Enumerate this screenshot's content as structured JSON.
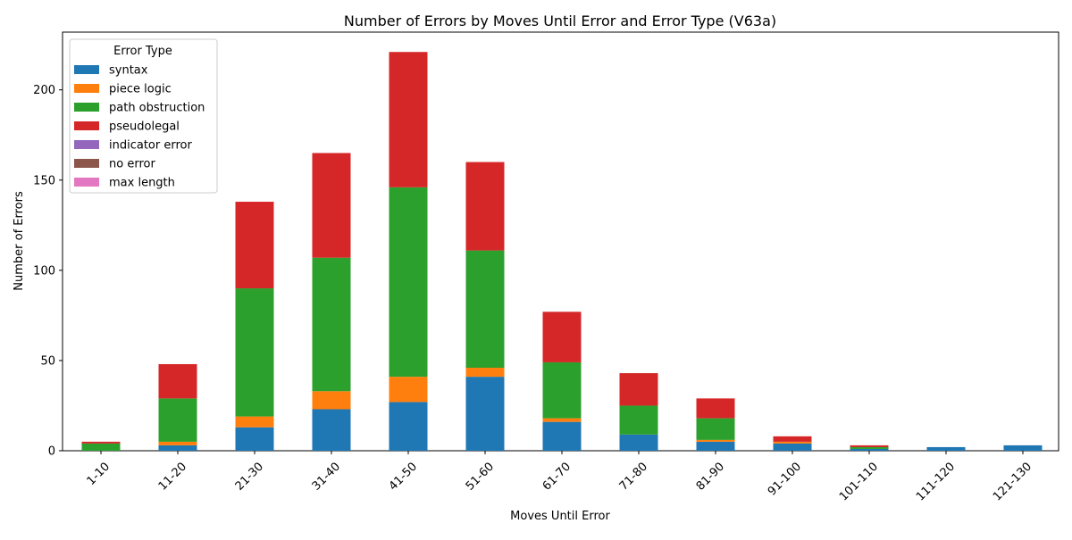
{
  "chart_data": {
    "type": "bar",
    "stacked": true,
    "title": "Number of Errors by Moves Until Error and Error Type (V63a)",
    "xlabel": "Moves Until Error",
    "ylabel": "Number of Errors",
    "ylim": [
      0,
      232
    ],
    "yticks": [
      0,
      50,
      100,
      150,
      200
    ],
    "categories": [
      "1-10",
      "11-20",
      "21-30",
      "31-40",
      "41-50",
      "51-60",
      "61-70",
      "71-80",
      "81-90",
      "91-100",
      "101-110",
      "111-120",
      "121-130"
    ],
    "legend": {
      "title": "Error Type",
      "placement": "top-left"
    },
    "series": [
      {
        "name": "syntax",
        "color": "#1f77b4",
        "values": [
          0,
          3,
          13,
          23,
          27,
          41,
          16,
          9,
          5,
          4,
          1,
          2,
          3
        ]
      },
      {
        "name": "piece logic",
        "color": "#ff7f0e",
        "values": [
          0,
          2,
          6,
          10,
          14,
          5,
          2,
          0,
          1,
          1,
          0,
          0,
          0
        ]
      },
      {
        "name": "path obstruction",
        "color": "#2ca02c",
        "values": [
          4,
          24,
          71,
          74,
          105,
          65,
          31,
          16,
          12,
          0,
          1,
          0,
          0
        ]
      },
      {
        "name": "pseudolegal",
        "color": "#d62728",
        "values": [
          1,
          19,
          48,
          58,
          75,
          49,
          28,
          18,
          11,
          3,
          1,
          0,
          0
        ]
      },
      {
        "name": "indicator error",
        "color": "#9467bd",
        "values": [
          0,
          0,
          0,
          0,
          0,
          0,
          0,
          0,
          0,
          0,
          0,
          0,
          0
        ]
      },
      {
        "name": "no error",
        "color": "#8c564b",
        "values": [
          0,
          0,
          0,
          0,
          0,
          0,
          0,
          0,
          0,
          0,
          0,
          0,
          0
        ]
      },
      {
        "name": "max length",
        "color": "#e377c2",
        "values": [
          0,
          0,
          0,
          0,
          0,
          0,
          0,
          0,
          0,
          0,
          0,
          0,
          0
        ]
      }
    ]
  }
}
